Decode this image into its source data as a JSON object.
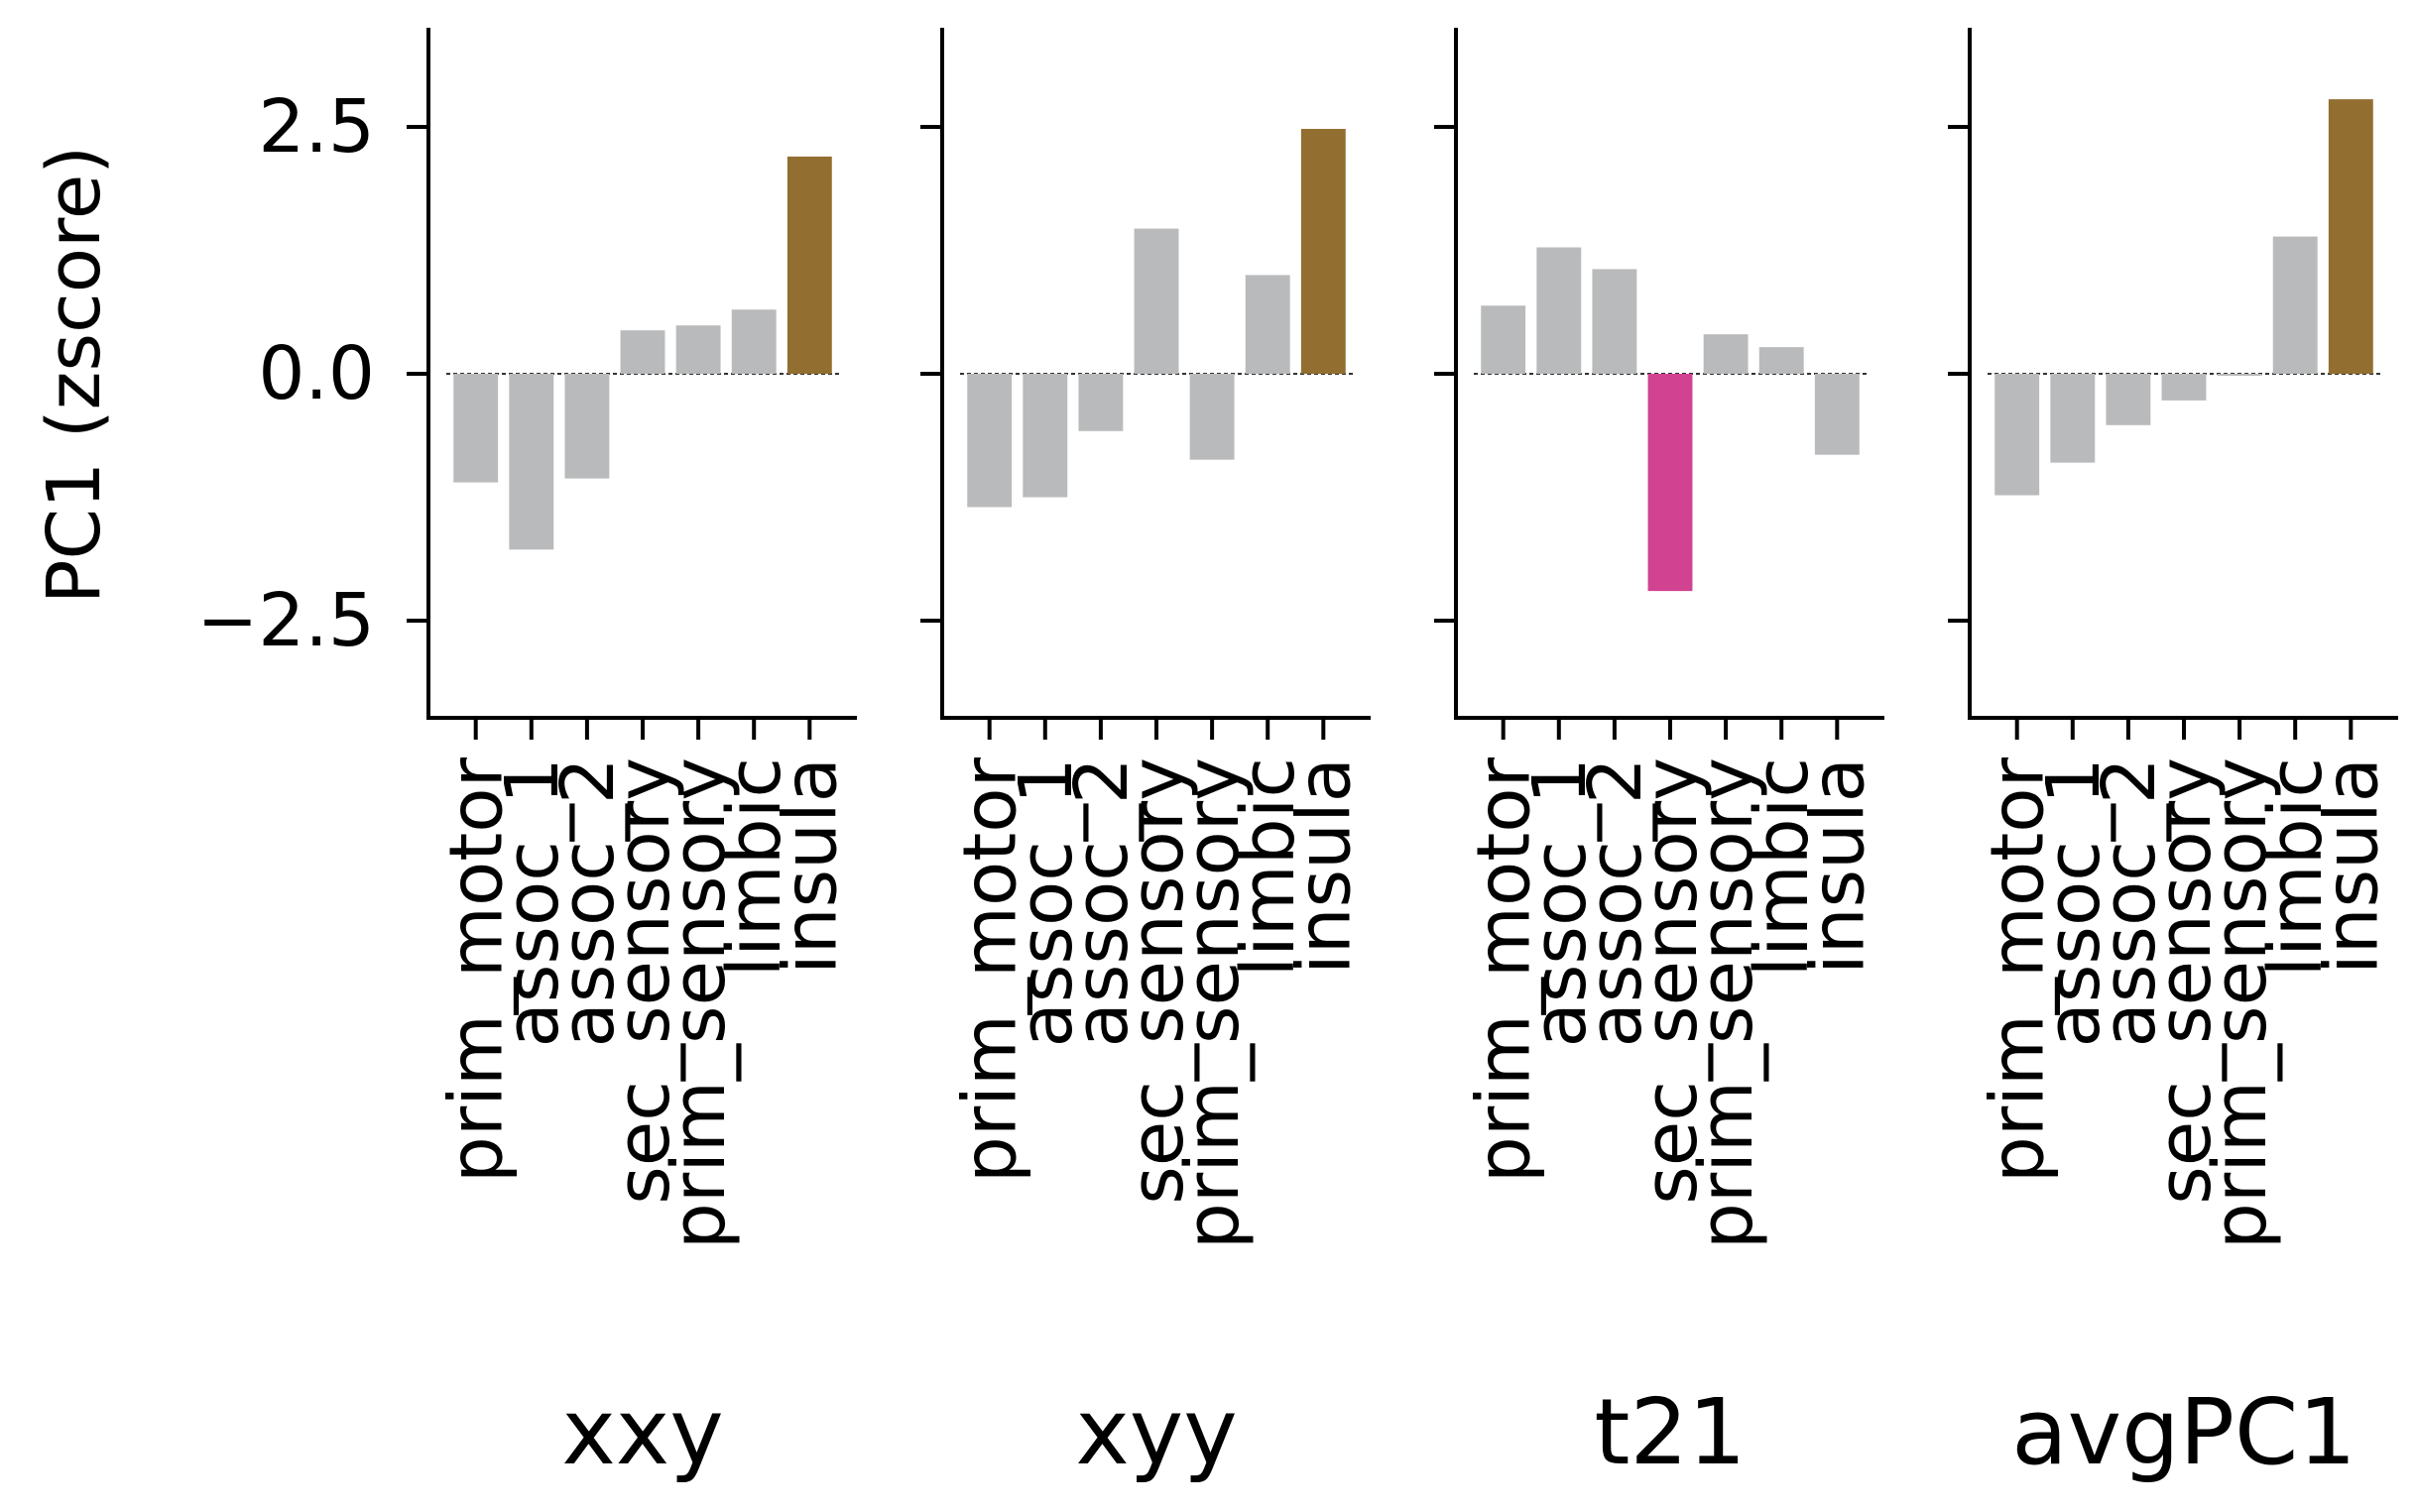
{
  "ylabel": "PC1 (zscore)",
  "y_ticks": [
    "2.5",
    "0.0",
    "−2.5"
  ],
  "colors": {
    "default_bar": "#B9BABB",
    "highlight_up": "#926F30",
    "highlight_down": "#D14391",
    "axis": "#000000",
    "zero_line": "#333333"
  },
  "chart_data": [
    {
      "type": "bar",
      "xlabel": "xxy",
      "categories": [
        "prim_motor",
        "assoc_1",
        "assoc_2",
        "sec_sensory",
        "prim_sensory",
        "limbic",
        "insula"
      ],
      "values": [
        -1.1,
        -1.78,
        -1.06,
        0.44,
        0.49,
        0.65,
        2.2
      ],
      "bar_colors": [
        "#B9BABB",
        "#B9BABB",
        "#B9BABB",
        "#B9BABB",
        "#B9BABB",
        "#B9BABB",
        "#926F30"
      ],
      "ylim": [
        -3.5,
        3.5
      ],
      "ylabel": "PC1 (zscore)",
      "y_ticks": [
        2.5,
        0.0,
        -2.5
      ]
    },
    {
      "type": "bar",
      "xlabel": "xyy",
      "categories": [
        "prim_motor",
        "assoc_1",
        "assoc_2",
        "sec_sensory",
        "prim_sensory",
        "limbic",
        "insula"
      ],
      "values": [
        -1.35,
        -1.25,
        -0.58,
        1.47,
        -0.87,
        1.0,
        2.48
      ],
      "bar_colors": [
        "#B9BABB",
        "#B9BABB",
        "#B9BABB",
        "#B9BABB",
        "#B9BABB",
        "#B9BABB",
        "#926F30"
      ],
      "ylim": [
        -3.5,
        3.5
      ],
      "y_ticks": [
        2.5,
        0.0,
        -2.5
      ]
    },
    {
      "type": "bar",
      "xlabel": "t21",
      "categories": [
        "prim_motor",
        "assoc_1",
        "assoc_2",
        "sec_sensory",
        "prim_sensory",
        "limbic",
        "insula"
      ],
      "values": [
        0.69,
        1.28,
        1.06,
        -2.2,
        0.4,
        0.27,
        -0.82
      ],
      "bar_colors": [
        "#B9BABB",
        "#B9BABB",
        "#B9BABB",
        "#D14391",
        "#B9BABB",
        "#B9BABB",
        "#B9BABB"
      ],
      "ylim": [
        -3.5,
        3.5
      ],
      "y_ticks": [
        2.5,
        0.0,
        -2.5
      ]
    },
    {
      "type": "bar",
      "xlabel": "avgPC1",
      "categories": [
        "prim_motor",
        "assoc_1",
        "assoc_2",
        "sec_sensory",
        "prim_sensory",
        "limbic",
        "insula"
      ],
      "values": [
        -1.23,
        -0.9,
        -0.52,
        -0.27,
        -0.02,
        1.39,
        2.78
      ],
      "bar_colors": [
        "#B9BABB",
        "#B9BABB",
        "#B9BABB",
        "#B9BABB",
        "#B9BABB",
        "#B9BABB",
        "#926F30"
      ],
      "ylim": [
        -3.5,
        3.5
      ],
      "y_ticks": [
        2.5,
        0.0,
        -2.5
      ]
    }
  ]
}
